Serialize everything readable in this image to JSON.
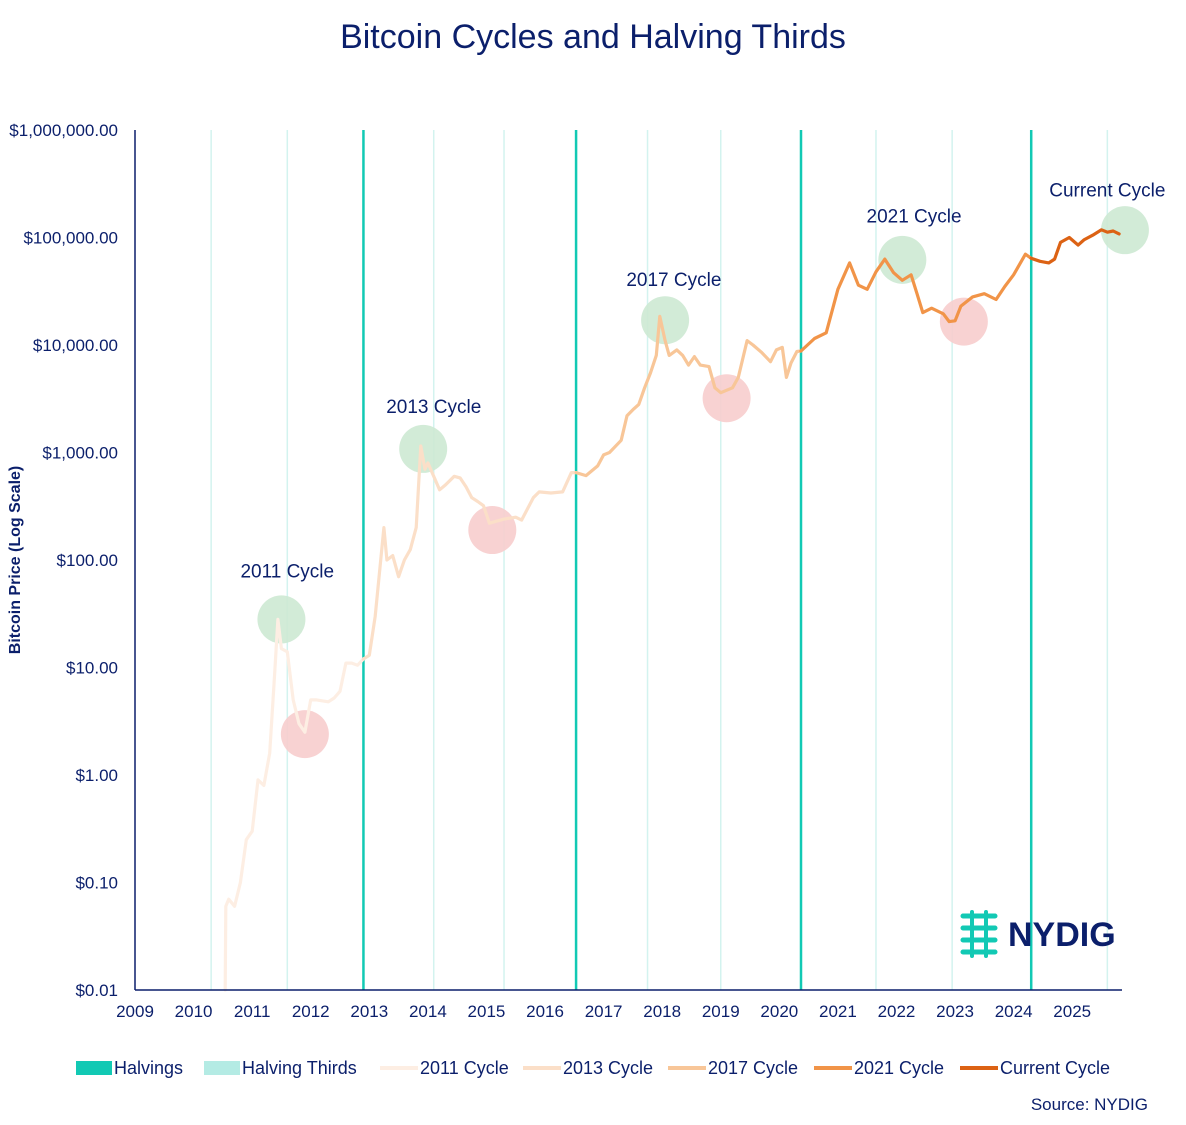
{
  "chart_data": {
    "type": "line",
    "title": "Bitcoin Cycles and Halving Thirds",
    "ylabel": "Bitcoin Price (Log Scale)",
    "xlabel": "",
    "yscale": "log",
    "ylim": [
      0.01,
      1000000
    ],
    "xlim": [
      2009.0,
      2025.85
    ],
    "y_ticks": [
      {
        "value": 0.01,
        "label": "$0.01"
      },
      {
        "value": 0.1,
        "label": "$0.10"
      },
      {
        "value": 1,
        "label": "$1.00"
      },
      {
        "value": 10,
        "label": "$10.00"
      },
      {
        "value": 100,
        "label": "$100.00"
      },
      {
        "value": 1000,
        "label": "$1,000.00"
      },
      {
        "value": 10000,
        "label": "$10,000.00"
      },
      {
        "value": 100000,
        "label": "$100,000.00"
      },
      {
        "value": 1000000,
        "label": "$1,000,000.00"
      }
    ],
    "x_ticks": [
      {
        "value": 2009,
        "label": "2009"
      },
      {
        "value": 2010,
        "label": "2010"
      },
      {
        "value": 2011,
        "label": "2011"
      },
      {
        "value": 2012,
        "label": "2012"
      },
      {
        "value": 2013,
        "label": "2013"
      },
      {
        "value": 2014,
        "label": "2014"
      },
      {
        "value": 2015,
        "label": "2015"
      },
      {
        "value": 2016,
        "label": "2016"
      },
      {
        "value": 2017,
        "label": "2017"
      },
      {
        "value": 2018,
        "label": "2018"
      },
      {
        "value": 2019,
        "label": "2019"
      },
      {
        "value": 2020,
        "label": "2020"
      },
      {
        "value": 2021,
        "label": "2021"
      },
      {
        "value": 2022,
        "label": "2022"
      },
      {
        "value": 2023,
        "label": "2023"
      },
      {
        "value": 2024,
        "label": "2024"
      },
      {
        "value": 2025,
        "label": "2025"
      }
    ],
    "halvings": [
      2012.9,
      2016.53,
      2020.37,
      2024.3
    ],
    "halving_thirds": [
      2010.3,
      2011.6,
      2014.1,
      2015.3,
      2017.75,
      2019.0,
      2021.65,
      2022.95,
      2025.6
    ],
    "series": [
      {
        "name": "2011 Cycle",
        "color": "#fdeee3",
        "points": [
          [
            2010.54,
            0.01
          ],
          [
            2010.55,
            0.06
          ],
          [
            2010.6,
            0.07
          ],
          [
            2010.7,
            0.06
          ],
          [
            2010.8,
            0.1
          ],
          [
            2010.9,
            0.25
          ],
          [
            2011.0,
            0.3
          ],
          [
            2011.1,
            0.9
          ],
          [
            2011.2,
            0.8
          ],
          [
            2011.3,
            1.6
          ],
          [
            2011.38,
            8
          ],
          [
            2011.44,
            28
          ],
          [
            2011.5,
            15
          ],
          [
            2011.6,
            14
          ],
          [
            2011.7,
            5
          ],
          [
            2011.8,
            3
          ],
          [
            2011.9,
            2.5
          ],
          [
            2012.0,
            5
          ],
          [
            2012.1,
            5
          ],
          [
            2012.3,
            4.8
          ],
          [
            2012.4,
            5.2
          ],
          [
            2012.5,
            6
          ],
          [
            2012.6,
            11
          ],
          [
            2012.7,
            11
          ],
          [
            2012.8,
            10.5
          ],
          [
            2012.9,
            12
          ]
        ]
      },
      {
        "name": "2013 Cycle",
        "color": "#fbdfc8",
        "points": [
          [
            2012.9,
            12
          ],
          [
            2013.0,
            13
          ],
          [
            2013.1,
            30
          ],
          [
            2013.25,
            200
          ],
          [
            2013.3,
            100
          ],
          [
            2013.4,
            110
          ],
          [
            2013.5,
            70
          ],
          [
            2013.6,
            100
          ],
          [
            2013.7,
            125
          ],
          [
            2013.8,
            200
          ],
          [
            2013.88,
            1150
          ],
          [
            2013.95,
            700
          ],
          [
            2014.0,
            800
          ],
          [
            2014.1,
            600
          ],
          [
            2014.2,
            450
          ],
          [
            2014.3,
            500
          ],
          [
            2014.45,
            600
          ],
          [
            2014.55,
            580
          ],
          [
            2014.65,
            480
          ],
          [
            2014.75,
            380
          ],
          [
            2014.85,
            350
          ],
          [
            2014.95,
            320
          ],
          [
            2015.05,
            220
          ],
          [
            2015.3,
            240
          ],
          [
            2015.5,
            250
          ],
          [
            2015.6,
            235
          ],
          [
            2015.8,
            380
          ],
          [
            2015.9,
            430
          ],
          [
            2016.1,
            420
          ],
          [
            2016.3,
            430
          ],
          [
            2016.45,
            650
          ],
          [
            2016.53,
            650
          ]
        ]
      },
      {
        "name": "2017 Cycle",
        "color": "#f8c698",
        "points": [
          [
            2016.53,
            650
          ],
          [
            2016.7,
            610
          ],
          [
            2016.9,
            750
          ],
          [
            2017.0,
            950
          ],
          [
            2017.1,
            1000
          ],
          [
            2017.3,
            1300
          ],
          [
            2017.4,
            2200
          ],
          [
            2017.5,
            2500
          ],
          [
            2017.6,
            2800
          ],
          [
            2017.7,
            4000
          ],
          [
            2017.8,
            5500
          ],
          [
            2017.9,
            8000
          ],
          [
            2017.96,
            18500
          ],
          [
            2018.05,
            11000
          ],
          [
            2018.12,
            8000
          ],
          [
            2018.25,
            9000
          ],
          [
            2018.35,
            8000
          ],
          [
            2018.45,
            6500
          ],
          [
            2018.55,
            7800
          ],
          [
            2018.65,
            6500
          ],
          [
            2018.8,
            6300
          ],
          [
            2018.9,
            4000
          ],
          [
            2019.0,
            3600
          ],
          [
            2019.2,
            4000
          ],
          [
            2019.3,
            5000
          ],
          [
            2019.45,
            11000
          ],
          [
            2019.55,
            10000
          ],
          [
            2019.7,
            8500
          ],
          [
            2019.85,
            7000
          ],
          [
            2019.95,
            9000
          ],
          [
            2020.05,
            9500
          ],
          [
            2020.12,
            5000
          ],
          [
            2020.2,
            6800
          ],
          [
            2020.3,
            8700
          ],
          [
            2020.37,
            8800
          ]
        ]
      },
      {
        "name": "2021 Cycle",
        "color": "#f19448",
        "points": [
          [
            2020.37,
            8800
          ],
          [
            2020.6,
            11500
          ],
          [
            2020.8,
            13000
          ],
          [
            2021.0,
            33000
          ],
          [
            2021.2,
            58000
          ],
          [
            2021.35,
            36000
          ],
          [
            2021.5,
            33000
          ],
          [
            2021.65,
            48000
          ],
          [
            2021.8,
            63000
          ],
          [
            2021.95,
            47000
          ],
          [
            2022.1,
            40000
          ],
          [
            2022.25,
            45000
          ],
          [
            2022.35,
            30000
          ],
          [
            2022.45,
            20000
          ],
          [
            2022.6,
            22000
          ],
          [
            2022.8,
            19500
          ],
          [
            2022.9,
            16500
          ],
          [
            2023.0,
            16800
          ],
          [
            2023.1,
            23000
          ],
          [
            2023.3,
            28000
          ],
          [
            2023.5,
            30000
          ],
          [
            2023.7,
            26500
          ],
          [
            2023.85,
            35000
          ],
          [
            2024.0,
            45000
          ],
          [
            2024.2,
            70000
          ],
          [
            2024.3,
            64000
          ]
        ]
      },
      {
        "name": "Current Cycle",
        "color": "#dc6214",
        "points": [
          [
            2024.3,
            64000
          ],
          [
            2024.45,
            60000
          ],
          [
            2024.6,
            58000
          ],
          [
            2024.7,
            63000
          ],
          [
            2024.8,
            90000
          ],
          [
            2024.95,
            100000
          ],
          [
            2025.1,
            85000
          ],
          [
            2025.2,
            95000
          ],
          [
            2025.35,
            105000
          ],
          [
            2025.5,
            118000
          ],
          [
            2025.6,
            112000
          ],
          [
            2025.7,
            115000
          ],
          [
            2025.8,
            108000
          ]
        ]
      }
    ],
    "highlights": [
      {
        "kind": "peak",
        "x": 2011.5,
        "y": 28,
        "color": "#cde9d3"
      },
      {
        "kind": "trough",
        "x": 2011.9,
        "y": 2.4,
        "color": "#f7cdcd"
      },
      {
        "kind": "peak",
        "x": 2013.92,
        "y": 1080,
        "color": "#cde9d3"
      },
      {
        "kind": "trough",
        "x": 2015.1,
        "y": 190,
        "color": "#f7cdcd"
      },
      {
        "kind": "peak",
        "x": 2018.05,
        "y": 17000,
        "color": "#cde9d3"
      },
      {
        "kind": "trough",
        "x": 2019.1,
        "y": 3200,
        "color": "#f7cdcd"
      },
      {
        "kind": "peak",
        "x": 2022.1,
        "y": 62000,
        "color": "#cde9d3"
      },
      {
        "kind": "trough",
        "x": 2023.15,
        "y": 16500,
        "color": "#f7cdcd"
      },
      {
        "kind": "peak",
        "x": 2025.9,
        "y": 117000,
        "color": "#cde9d3"
      }
    ],
    "annotations": [
      {
        "text": "2011 Cycle",
        "x": 2011.6,
        "y": 80
      },
      {
        "text": "2013 Cycle",
        "x": 2014.1,
        "y": 2700
      },
      {
        "text": "2017 Cycle",
        "x": 2018.2,
        "y": 41000
      },
      {
        "text": "2021 Cycle",
        "x": 2022.3,
        "y": 160000
      },
      {
        "text": "Current Cycle",
        "x": 2025.6,
        "y": 280000
      }
    ],
    "legend": [
      {
        "label": "Halvings",
        "color": "#12c9b4",
        "style": "box"
      },
      {
        "label": "Halving Thirds",
        "color": "#b4ebe4",
        "style": "box"
      },
      {
        "label": "2011 Cycle",
        "color": "#fdeee3",
        "style": "line"
      },
      {
        "label": "2013 Cycle",
        "color": "#fbdfc8",
        "style": "line"
      },
      {
        "label": "2017 Cycle",
        "color": "#f8c698",
        "style": "line"
      },
      {
        "label": "2021 Cycle",
        "color": "#f19448",
        "style": "line"
      },
      {
        "label": "Current Cycle",
        "color": "#dc6214",
        "style": "line"
      }
    ],
    "source": "Source: NYDIG",
    "logo_text": "NYDIG"
  },
  "colors": {
    "axis": "#0b1f6b",
    "halving": "#12c9b4",
    "halving_third": "#d3f3ef",
    "logo_mark": "#12c9b4"
  }
}
